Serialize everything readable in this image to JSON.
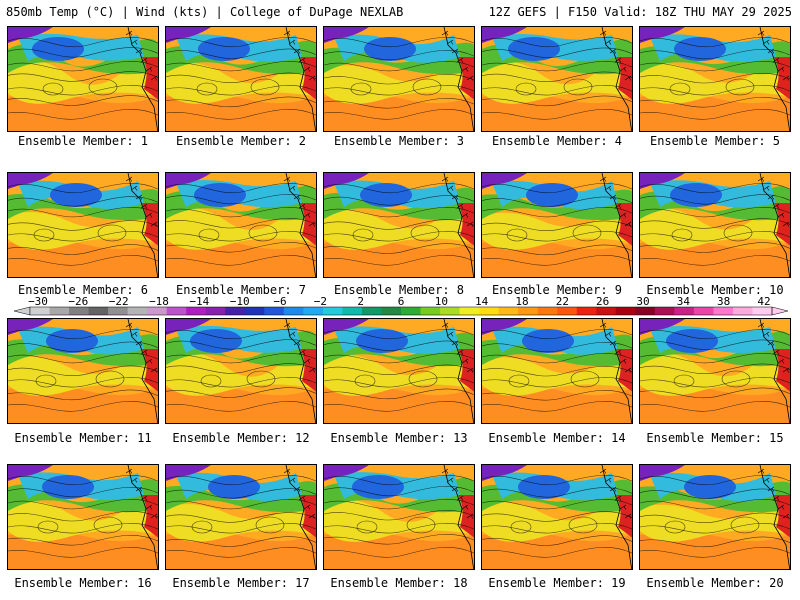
{
  "header": {
    "left_title": "850mb Temp (°C) | Wind (kts) | College of DuPage NEXLAB",
    "right_title": "12Z GEFS | F150 Valid: 18Z THU MAY 29 2025"
  },
  "members": [
    {
      "label": "Ensemble Member: 1"
    },
    {
      "label": "Ensemble Member: 2"
    },
    {
      "label": "Ensemble Member: 3"
    },
    {
      "label": "Ensemble Member: 4"
    },
    {
      "label": "Ensemble Member: 5"
    },
    {
      "label": "Ensemble Member: 6"
    },
    {
      "label": "Ensemble Member: 7"
    },
    {
      "label": "Ensemble Member: 8"
    },
    {
      "label": "Ensemble Member: 9"
    },
    {
      "label": "Ensemble Member: 10"
    },
    {
      "label": "Ensemble Member: 11"
    },
    {
      "label": "Ensemble Member: 12"
    },
    {
      "label": "Ensemble Member: 13"
    },
    {
      "label": "Ensemble Member: 14"
    },
    {
      "label": "Ensemble Member: 15"
    },
    {
      "label": "Ensemble Member: 16"
    },
    {
      "label": "Ensemble Member: 17"
    },
    {
      "label": "Ensemble Member: 18"
    },
    {
      "label": "Ensemble Member: 19"
    },
    {
      "label": "Ensemble Member: 20"
    }
  ],
  "colorbar": {
    "labels": [
      "−30",
      "−26",
      "−22",
      "−18",
      "−14",
      "−10",
      "−6",
      "−2",
      "2",
      "6",
      "10",
      "14",
      "18",
      "22",
      "26",
      "30",
      "34",
      "38",
      "42"
    ],
    "colors": [
      "#d0d0d0",
      "#a8a8a8",
      "#808080",
      "#646464",
      "#909090",
      "#b4b4b4",
      "#cc99cc",
      "#bb55cc",
      "#aa22bb",
      "#8822aa",
      "#4422aa",
      "#2233bb",
      "#2255dd",
      "#2288ee",
      "#22aaee",
      "#22ccdd",
      "#11bbaa",
      "#119966",
      "#228844",
      "#33aa33",
      "#77cc22",
      "#aadd22",
      "#eeee22",
      "#ffdd11",
      "#ffbb11",
      "#ff9911",
      "#ff7711",
      "#ff5511",
      "#ee2211",
      "#cc1111",
      "#aa0011",
      "#880022",
      "#aa1155",
      "#cc2288",
      "#ee44aa",
      "#ff77cc",
      "#ffaadd",
      "#ffccee"
    ]
  },
  "palette": {
    "purple": "#7722bb",
    "blue": "#2266dd",
    "cyan": "#33bbdd",
    "teal": "#22aa88",
    "green": "#55bb33",
    "yellow": "#eedd22",
    "orange": "#ffaa22",
    "darkorange": "#ff7722",
    "red": "#dd2222"
  }
}
